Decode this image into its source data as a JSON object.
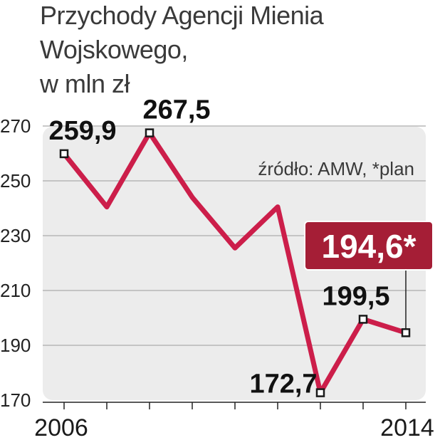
{
  "chart_data": {
    "type": "line",
    "title_lines": [
      "Przychody Agencji Mienia",
      "Wojskowego,",
      "w mln zł"
    ],
    "source": "źródło: AMW, *plan",
    "x": [
      2006,
      2007,
      2008,
      2009,
      2010,
      2011,
      2012,
      2013,
      2014
    ],
    "values": [
      259.9,
      240.5,
      267.5,
      244.0,
      225.5,
      240.5,
      172.7,
      199.5,
      194.6
    ],
    "ylim": [
      170,
      275
    ],
    "yticks": [
      170,
      190,
      210,
      230,
      250,
      270
    ],
    "ytick_labels": [
      "170",
      "190",
      "210",
      "230",
      "250",
      "270"
    ],
    "xtick_labels": [
      "2006",
      "2014"
    ],
    "labels": [
      {
        "index": 0,
        "text": "259,9"
      },
      {
        "index": 2,
        "text": "267,5"
      },
      {
        "index": 6,
        "text": "172,7"
      },
      {
        "index": 7,
        "text": "199,5"
      }
    ],
    "highlight": {
      "index": 8,
      "text": "194,6*"
    },
    "grid": true,
    "colors": {
      "line": "#cc1e4a",
      "plot_bg": "#ececec",
      "grid": "#b7b7b7",
      "highlight_bg": "#a51e36",
      "marker_border": "#1a1a1a"
    }
  }
}
